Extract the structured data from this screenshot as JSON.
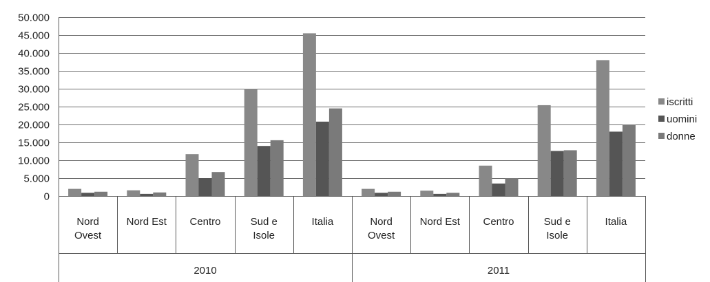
{
  "chart_data": {
    "type": "bar",
    "title": "",
    "xlabel": "",
    "ylabel": "",
    "ylim": [
      0,
      50000
    ],
    "yticks": [
      0,
      5000,
      10000,
      15000,
      20000,
      25000,
      30000,
      35000,
      40000,
      45000,
      50000
    ],
    "ytick_labels": [
      "0",
      "5.000",
      "10.000",
      "15.000",
      "20.000",
      "25.000",
      "30.000",
      "35.000",
      "40.000",
      "45.000",
      "50.000"
    ],
    "grid": true,
    "legend_position": "right",
    "groups": [
      {
        "label": "2010",
        "categories": [
          "Nord Ovest",
          "Nord Est",
          "Centro",
          "Sud e Isole",
          "Italia"
        ]
      },
      {
        "label": "2011",
        "categories": [
          "Nord Ovest",
          "Nord Est",
          "Centro",
          "Sud e Isole",
          "Italia"
        ]
      }
    ],
    "series": [
      {
        "name": "iscritti",
        "color": "#888888",
        "values": [
          2000,
          1600,
          11700,
          30000,
          45500,
          2000,
          1500,
          8500,
          25400,
          38000
        ]
      },
      {
        "name": "uomini",
        "color": "#555555",
        "values": [
          900,
          600,
          5000,
          14000,
          20800,
          900,
          600,
          3500,
          12600,
          18000
        ]
      },
      {
        "name": "donne",
        "color": "#7a7a7a",
        "values": [
          1200,
          1000,
          6700,
          15600,
          24500,
          1200,
          900,
          5000,
          12800,
          20000
        ]
      }
    ]
  }
}
